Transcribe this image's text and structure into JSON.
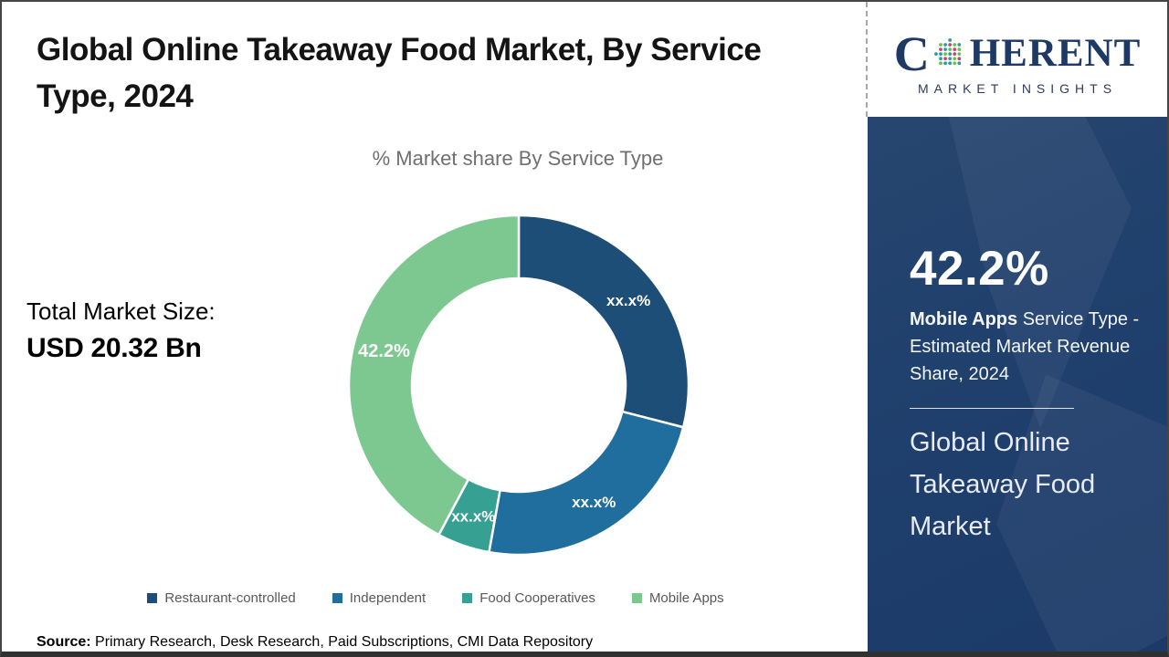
{
  "page": {
    "title_line1": "Global Online Takeaway Food Market, By Service",
    "title_line2": "Type, 2024",
    "source_label": "Source:",
    "source_text": " Primary Research, Desk Research, Paid Subscriptions, CMI Data Repository"
  },
  "stats": {
    "total_label": "Total Market Size:",
    "total_value": "USD 20.32 Bn"
  },
  "chart_data": {
    "type": "pie",
    "subtype": "donut",
    "title": "% Market share By Service Type",
    "unit": "%",
    "start_angle_deg": 0,
    "legend_position": "bottom",
    "segments": [
      {
        "label": "Restaurant-controlled",
        "value": 29.0,
        "display": "xx.x%",
        "color": "#1c4e78",
        "emphasis": false
      },
      {
        "label": "Independent",
        "value": 23.8,
        "display": "xx.x%",
        "color": "#1f6e9d",
        "emphasis": false
      },
      {
        "label": "Food Cooperatives",
        "value": 5.0,
        "display": "xx.x%",
        "color": "#36a093",
        "emphasis": false
      },
      {
        "label": "Mobile Apps",
        "value": 42.2,
        "display": "42.2%",
        "color": "#7dc791",
        "emphasis": true
      }
    ]
  },
  "sidebar": {
    "logo": {
      "part1": "C",
      "part2": "HERENT",
      "sub": "MARKET INSIGHTS"
    },
    "highlight_value": "42.2%",
    "highlight_bold": "Mobile Apps",
    "highlight_rest": " Service Type - Estimated Market Revenue Share, 2024",
    "market_name": "Global Online Takeaway Food Market"
  },
  "colors": {
    "sidebar_bg": "#20406d",
    "logo_navy": "#1e3a64",
    "title_text": "#141414",
    "muted_gray": "#6f6f6f",
    "legend_gray": "#595959"
  }
}
